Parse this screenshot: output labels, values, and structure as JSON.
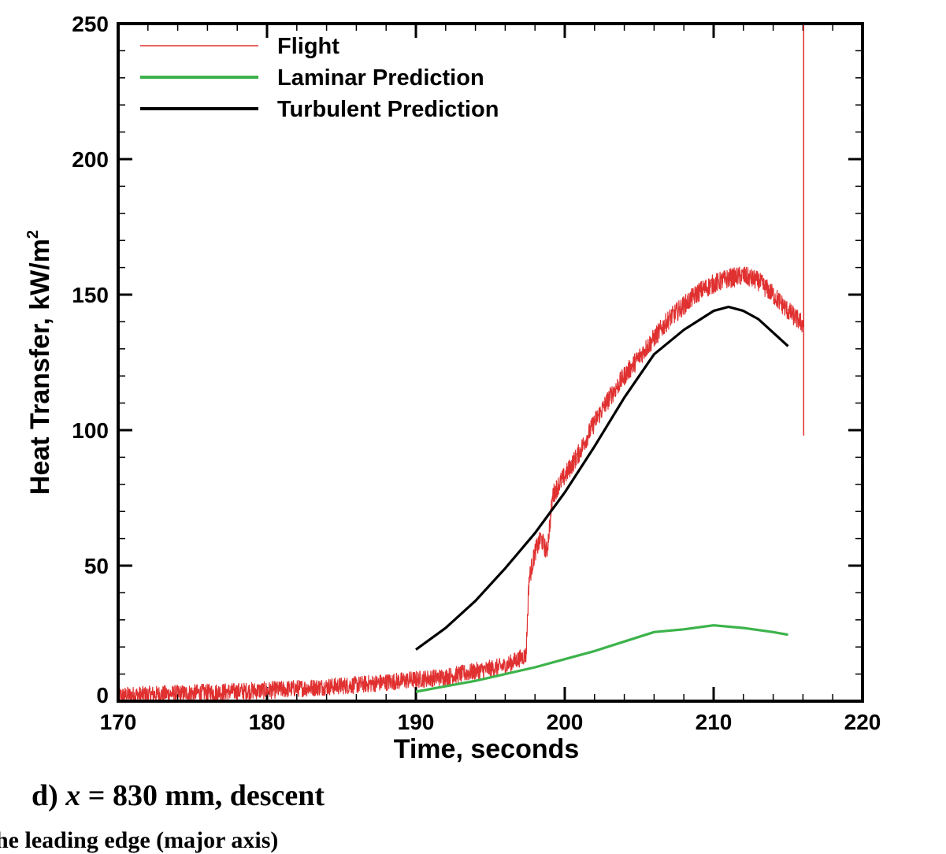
{
  "chart_data": {
    "type": "line",
    "xlabel": "Time, seconds",
    "ylabel": "Heat Transfer, kW/m",
    "ylabel_superscript": "2",
    "xlim": [
      170,
      220
    ],
    "ylim": [
      0,
      250
    ],
    "xticks": [
      170,
      180,
      190,
      200,
      210,
      220
    ],
    "yticks": [
      0,
      50,
      100,
      150,
      200,
      250
    ],
    "legend_position": "top-left",
    "grid": false,
    "series": [
      {
        "name": "Flight",
        "color": "#e03030",
        "noisy": true,
        "x": [
          170,
          175,
          180,
          183,
          186,
          188,
          190,
          192,
          194,
          196,
          197.4,
          197.6,
          198.0,
          198.4,
          198.8,
          199.2,
          199.6,
          200,
          201,
          202,
          203,
          204,
          205,
          206,
          207,
          208,
          209,
          210,
          211,
          212,
          213,
          214,
          215,
          216
        ],
        "y": [
          2,
          3,
          4,
          5,
          6,
          7,
          8,
          9,
          11,
          13,
          17,
          45,
          55,
          60,
          55,
          76,
          80,
          83,
          92,
          103,
          112,
          120,
          127,
          134,
          141,
          146,
          151,
          154,
          156,
          157,
          155,
          150,
          144,
          139
        ]
      },
      {
        "name": "Flight",
        "color": "#e03030",
        "spike": true,
        "x": [
          216.05,
          216.05
        ],
        "y": [
          98,
          250
        ]
      },
      {
        "name": "Laminar Prediction",
        "color": "#3cb34a",
        "x": [
          190,
          192,
          194,
          196,
          198,
          200,
          202,
          204,
          206,
          208,
          210,
          212,
          214,
          215
        ],
        "y": [
          3.5,
          5.5,
          7.5,
          10,
          12.5,
          15.5,
          18.5,
          22,
          25.5,
          26.5,
          28,
          27,
          25.5,
          24.5
        ]
      },
      {
        "name": "Turbulent Prediction",
        "color": "#000000",
        "x": [
          190,
          192,
          194,
          196,
          198,
          200,
          202,
          204,
          206,
          208,
          210,
          211,
          212,
          213,
          214,
          215
        ],
        "y": [
          19,
          27,
          37,
          49,
          62,
          77,
          94,
          112,
          128,
          137,
          144,
          145.5,
          144,
          141,
          136,
          131
        ]
      }
    ],
    "legend": [
      {
        "label": "Flight",
        "color": "#e03030",
        "style": "thin"
      },
      {
        "label": "Laminar Prediction",
        "color": "#3cb34a",
        "style": "thick"
      },
      {
        "label": "Turbulent Prediction",
        "color": "#000000",
        "style": "thick"
      }
    ]
  },
  "caption": {
    "prefix": "d) ",
    "variable": "x",
    "rest": " = 830 mm, descent"
  },
  "cut_caption": "he leading edge (major axis)"
}
